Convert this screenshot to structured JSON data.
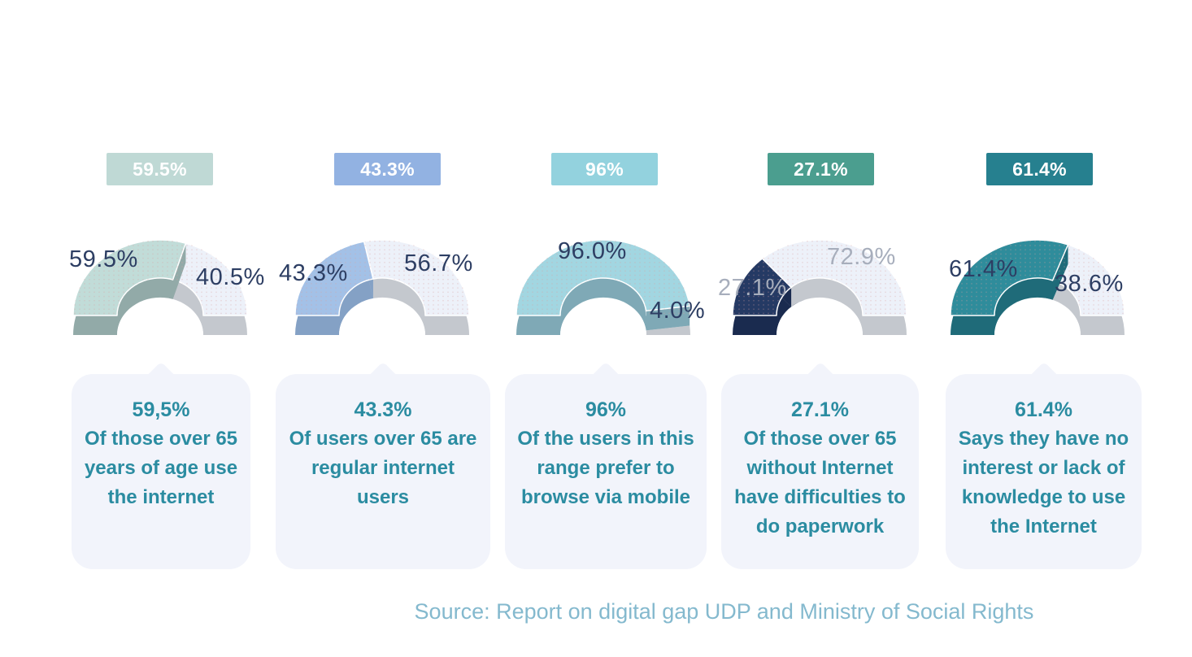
{
  "page": {
    "background": "#ffffff"
  },
  "chart_data": {
    "type": "pie",
    "style": "3d-semicircle-donut-row",
    "charts": [
      {
        "badge": "59.5%",
        "segments": [
          {
            "label": "59.5%",
            "value": 59.5
          },
          {
            "label": "40.5%",
            "value": 40.5
          }
        ],
        "colors": {
          "main": "#c1dcd8",
          "main_dark": "#92aaa8",
          "rest": "#edf1f9",
          "rest_dark": "#c4c8ce",
          "badge": "#bfd9d5",
          "label": "#2d3e63"
        },
        "card": {
          "title": "59,5%",
          "text": "Of those over 65 years of age use the internet"
        }
      },
      {
        "badge": "43.3%",
        "segments": [
          {
            "label": "43.3%",
            "value": 43.3
          },
          {
            "label": "56.7%",
            "value": 56.7
          }
        ],
        "colors": {
          "main": "#a3c1e7",
          "main_dark": "#84a1c5",
          "rest": "#edf1f9",
          "rest_dark": "#c4c8ce",
          "badge": "#92b2e2",
          "label": "#2d3e63"
        },
        "card": {
          "title": "43.3%",
          "text": "Of users over 65 are regular internet users"
        }
      },
      {
        "badge": "96%",
        "segments": [
          {
            "label": "96.0%",
            "value": 96.0
          },
          {
            "label": "4.0%",
            "value": 4.0
          }
        ],
        "colors": {
          "main": "#a2d6e1",
          "main_dark": "#7fa9b6",
          "rest": "#edf1f9",
          "rest_dark": "#c4c8ce",
          "badge": "#93d2de",
          "label": "#2d3e63"
        },
        "card": {
          "title": "96%",
          "text": "Of the users in this range prefer to browse via mobile"
        }
      },
      {
        "badge": "27.1%",
        "segments": [
          {
            "label": "27.1%",
            "value": 27.1
          },
          {
            "label": "72.9%",
            "value": 72.9
          }
        ],
        "colors": {
          "main": "#253a64",
          "main_dark": "#1a2b4f",
          "rest": "#edf1f9",
          "rest_dark": "#c4c8ce",
          "badge": "#4b9e8f",
          "label": "#a7aebc"
        },
        "card": {
          "title": "27.1%",
          "text": "Of those over 65 without Internet have difficulties to do paperwork"
        }
      },
      {
        "badge": "61.4%",
        "segments": [
          {
            "label": "61.4%",
            "value": 61.4
          },
          {
            "label": "38.6%",
            "value": 38.6
          }
        ],
        "colors": {
          "main": "#2f8c9b",
          "main_dark": "#1f6b79",
          "rest": "#edf1f9",
          "rest_dark": "#c4c8ce",
          "badge": "#26808f",
          "label": "#2d3e63"
        },
        "card": {
          "title": "61.4%",
          "text": "Says they have no interest or lack of knowledge to use the Internet"
        }
      }
    ]
  },
  "source": {
    "text": "Source: Report on digital gap UDP and Ministry of Social Rights"
  }
}
